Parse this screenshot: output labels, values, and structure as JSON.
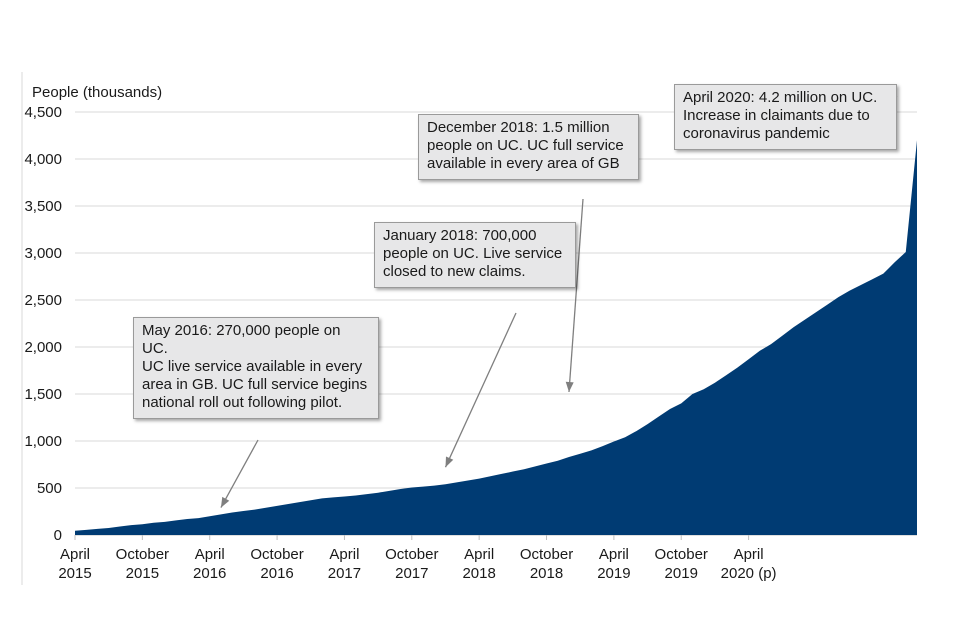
{
  "chart_data": {
    "type": "area",
    "ylabel": "People (thousands)",
    "ylim": [
      0,
      4500
    ],
    "yticks": [
      "0",
      "500",
      "1,000",
      "1,500",
      "2,000",
      "2,500",
      "3,000",
      "3,500",
      "4,000",
      "4,500"
    ],
    "ytick_values": [
      0,
      500,
      1000,
      1500,
      2000,
      2500,
      3000,
      3500,
      4000,
      4500
    ],
    "xticks": [
      {
        "month_index": 0,
        "line1": "April",
        "line2": "2015"
      },
      {
        "month_index": 6,
        "line1": "October",
        "line2": "2015"
      },
      {
        "month_index": 12,
        "line1": "April",
        "line2": "2016"
      },
      {
        "month_index": 18,
        "line1": "October",
        "line2": "2016"
      },
      {
        "month_index": 24,
        "line1": "April",
        "line2": "2017"
      },
      {
        "month_index": 30,
        "line1": "October",
        "line2": "2017"
      },
      {
        "month_index": 36,
        "line1": "April",
        "line2": "2018"
      },
      {
        "month_index": 42,
        "line1": "October",
        "line2": "2018"
      },
      {
        "month_index": 48,
        "line1": "April",
        "line2": "2019"
      },
      {
        "month_index": 54,
        "line1": "October",
        "line2": "2019"
      },
      {
        "month_index": 60,
        "line1": "April",
        "line2": "2020 (p)"
      }
    ],
    "grid": true,
    "fill_color": "#003b73",
    "series": [
      {
        "values": [
          45,
          55,
          65,
          75,
          90,
          105,
          115,
          130,
          140,
          155,
          170,
          180,
          200,
          220,
          240,
          255,
          270,
          290,
          310,
          330,
          350,
          370,
          390,
          400,
          410,
          420,
          435,
          450,
          470,
          490,
          505,
          515,
          525,
          540,
          560,
          580,
          600,
          625,
          650,
          675,
          700,
          730,
          760,
          790,
          830,
          865,
          900,
          945,
          995,
          1040,
          1105,
          1180,
          1260,
          1340,
          1400,
          1500,
          1550,
          1620,
          1700,
          1780,
          1870,
          1960,
          2030,
          2120,
          2210,
          2290,
          2370,
          2450,
          2530,
          2600,
          2660,
          2720,
          2780,
          2900,
          3010,
          4200
        ]
      }
    ],
    "annotations": [
      {
        "text": "May 2016: 270,000 people on UC.\nUC live service available in every area in GB. UC full service begins national roll out following pilot.",
        "target_month_index": 13,
        "target_value": 270
      },
      {
        "text": "January 2018: 700,000 people on UC. Live service closed to new claims.",
        "target_month_index": 33,
        "target_value": 700
      },
      {
        "text": "December 2018: 1.5 million people on UC. UC full service available in every area of GB",
        "target_month_index": 44,
        "target_value": 1500
      },
      {
        "text": "April 2020: 4.2 million on UC.\nIncrease in claimants due to coronavirus pandemic",
        "target_month_index": 60,
        "target_value": 4200
      }
    ]
  }
}
